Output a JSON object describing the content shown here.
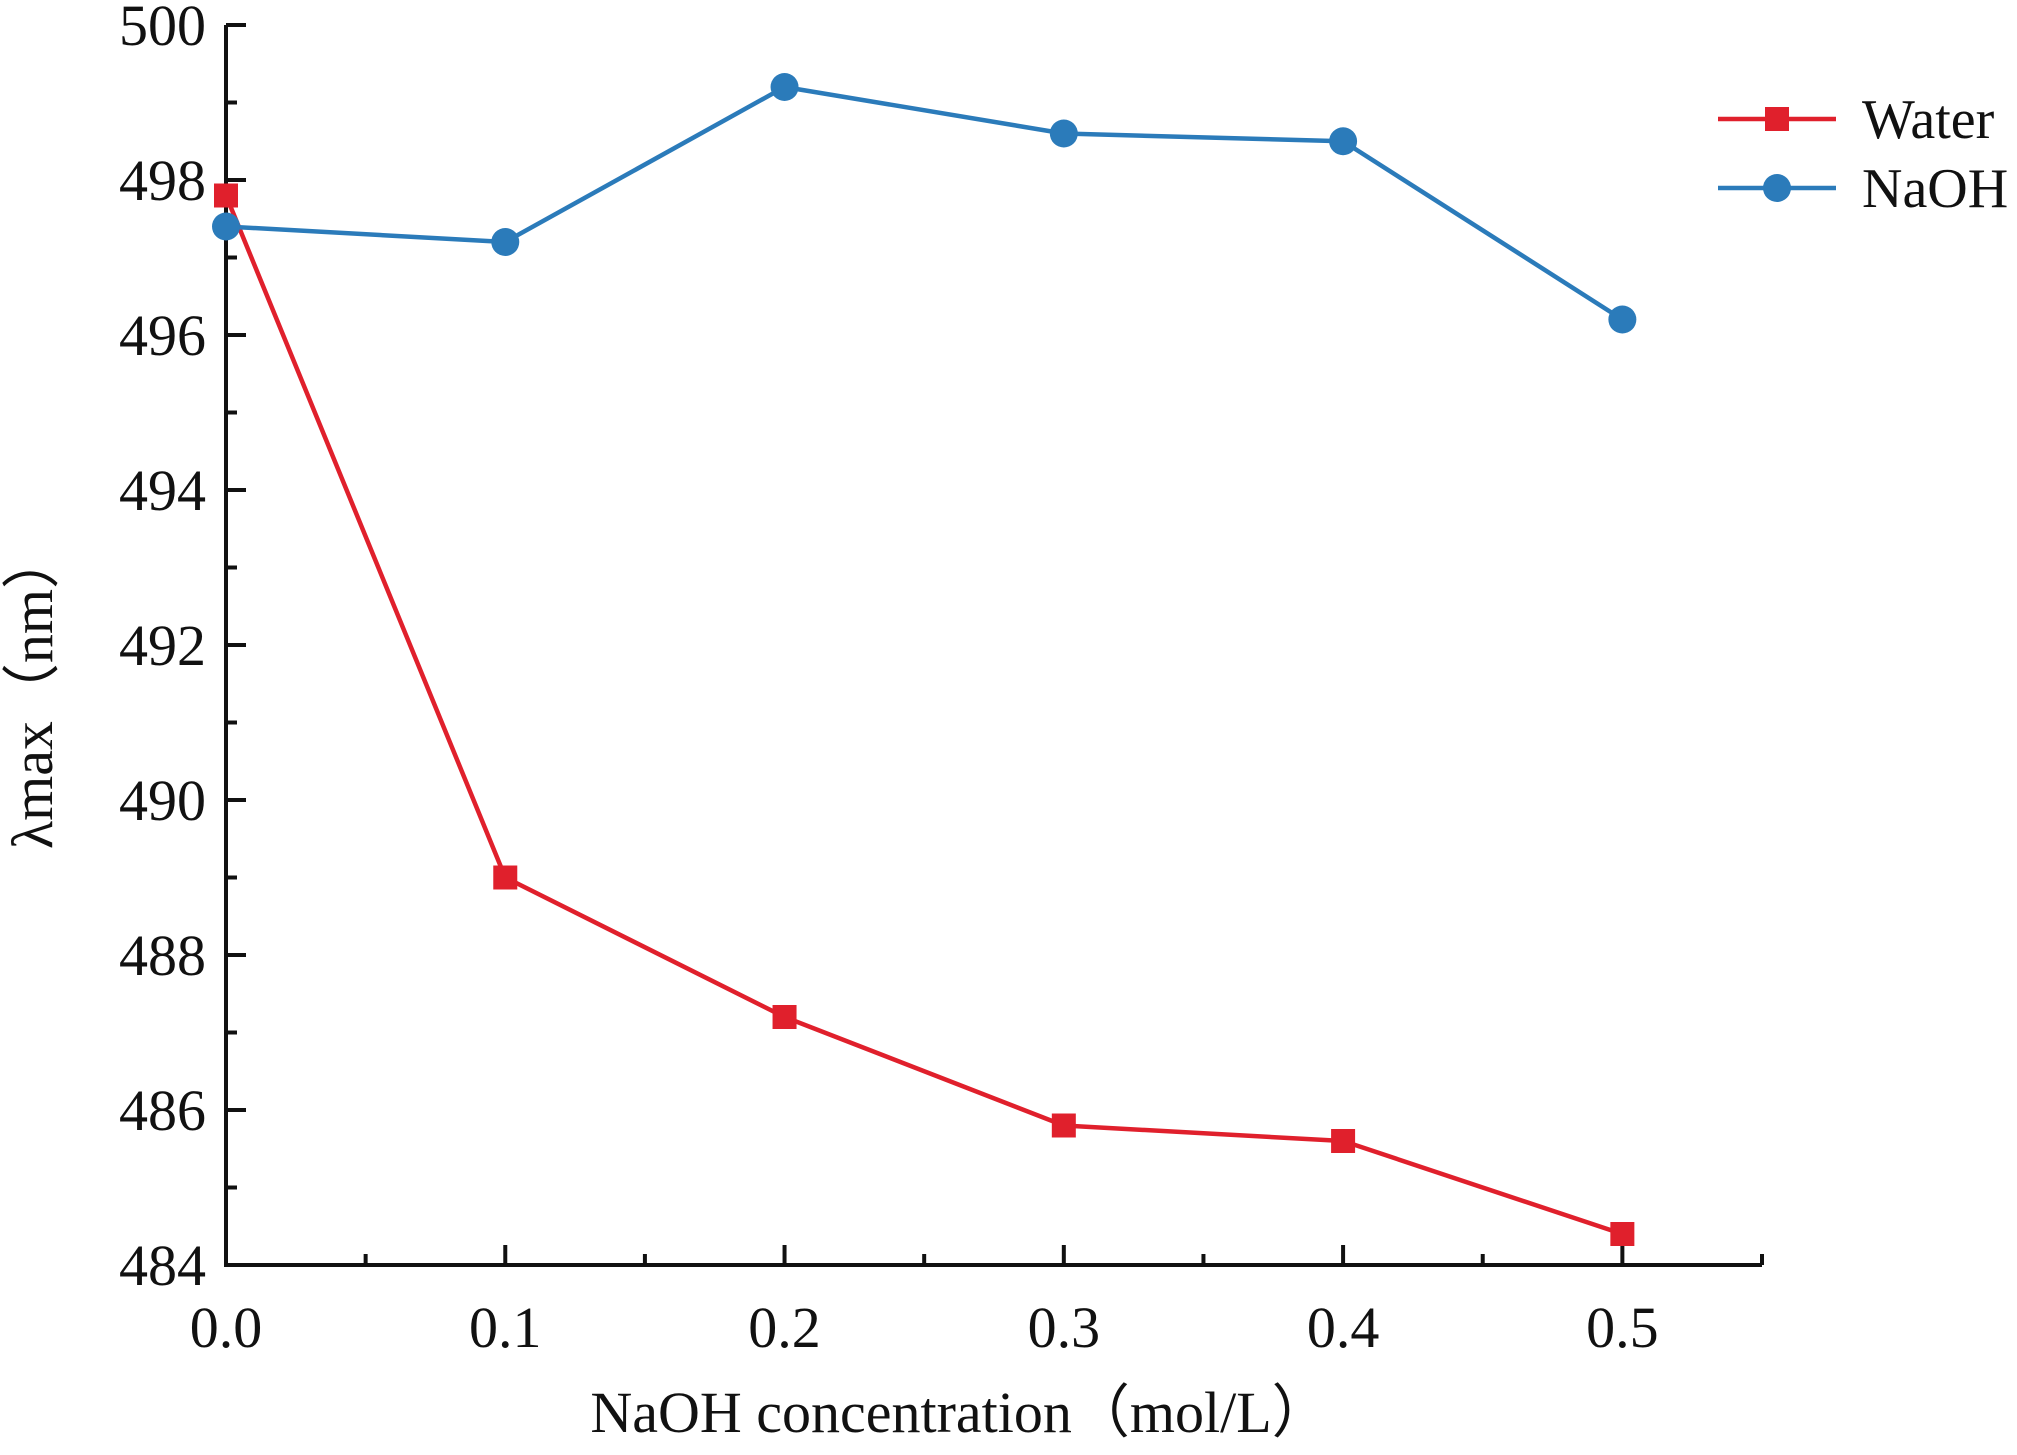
{
  "chart_data": {
    "type": "line",
    "title": "",
    "xlabel": "NaOH  concentration（mol/L）",
    "ylabel": "λmax（nm）",
    "xlim": [
      0,
      0.55
    ],
    "ylim": [
      484,
      500
    ],
    "xticks": [
      0.0,
      0.1,
      0.2,
      0.3,
      0.4,
      0.5
    ],
    "xtick_labels": [
      "0.0",
      "0.1",
      "0.2",
      "0.3",
      "0.4",
      "0.5"
    ],
    "yticks": [
      484,
      486,
      488,
      490,
      492,
      494,
      496,
      498,
      500
    ],
    "ytick_labels": [
      "484",
      "486",
      "488",
      "490",
      "492",
      "494",
      "496",
      "498",
      "500"
    ],
    "grid": false,
    "legend_position": "top-right",
    "x": [
      0.0,
      0.1,
      0.2,
      0.3,
      0.4,
      0.5
    ],
    "series": [
      {
        "name": "Water",
        "color": "#e0202c",
        "marker": "square",
        "values": [
          497.8,
          489.0,
          487.2,
          485.8,
          485.6,
          484.4
        ]
      },
      {
        "name": "NaOH",
        "color": "#2b7bba",
        "marker": "circle",
        "values": [
          497.4,
          497.2,
          499.2,
          498.6,
          498.5,
          496.2
        ]
      }
    ]
  }
}
